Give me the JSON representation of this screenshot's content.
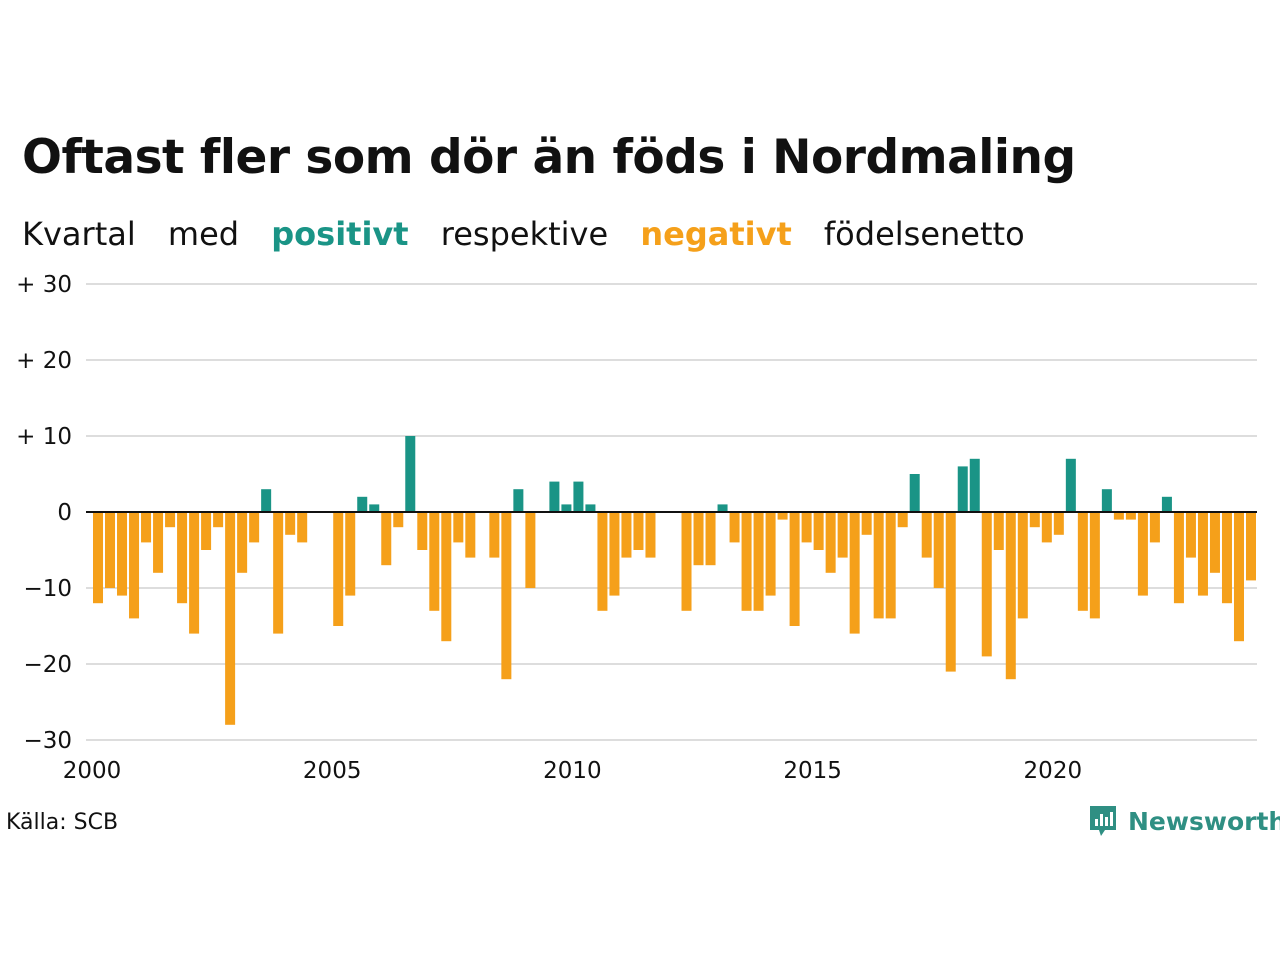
{
  "title": "Oftast fler som dör än föds i Nordmaling",
  "subtitle": {
    "w1": "Kvartal",
    "w2": "med",
    "positive": "positivt",
    "w3": "respektive",
    "negative": "negativt",
    "w4": "födelsenetto"
  },
  "source": "Källa: SCB",
  "brand": "Newsworthy",
  "colors": {
    "positive": "#1a9486",
    "negative": "#f5a01a",
    "grid": "#dddddd",
    "zero": "#111111"
  },
  "chart_data": {
    "type": "bar",
    "title": "Oftast fler som dör än föds i Nordmaling",
    "xlabel": "",
    "ylabel": "",
    "ylim": [
      -30,
      30
    ],
    "yticks": [
      30,
      20,
      10,
      0,
      -10,
      -20,
      -30
    ],
    "ytick_labels": [
      "+ 30",
      "+ 20",
      "+ 10",
      "0",
      "−10",
      "−20",
      "−30"
    ],
    "xtick_labels": [
      "2000",
      "2005",
      "2010",
      "2015",
      "2020"
    ],
    "grid": true,
    "series": [
      {
        "x_start": "2000 Q1",
        "frequency": "quarterly",
        "values": [
          -12,
          -10,
          -11,
          -14,
          -4,
          -8,
          -2,
          -12,
          -16,
          -5,
          -2,
          -28,
          -8,
          -4,
          3,
          -16,
          -3,
          -4,
          0,
          0,
          -15,
          -11,
          2,
          1,
          -7,
          -2,
          10,
          -5,
          -13,
          -17,
          -4,
          -6,
          0,
          -6,
          -22,
          3,
          -10,
          0,
          4,
          1,
          4,
          1,
          -13,
          -11,
          -6,
          -5,
          -6,
          0,
          0,
          -13,
          -7,
          -7,
          1,
          -4,
          -13,
          -13,
          -11,
          -1,
          -15,
          -4,
          -5,
          -8,
          -6,
          -16,
          -3,
          -14,
          -14,
          -2,
          5,
          -6,
          -10,
          -21,
          6,
          7,
          -19,
          -5,
          -22,
          -14,
          -2,
          -4,
          -3,
          7,
          -13,
          -14,
          3,
          -1,
          -1,
          -11,
          -4,
          2,
          -12,
          -6,
          -11,
          -8,
          -12,
          -17,
          -9
        ]
      }
    ]
  }
}
